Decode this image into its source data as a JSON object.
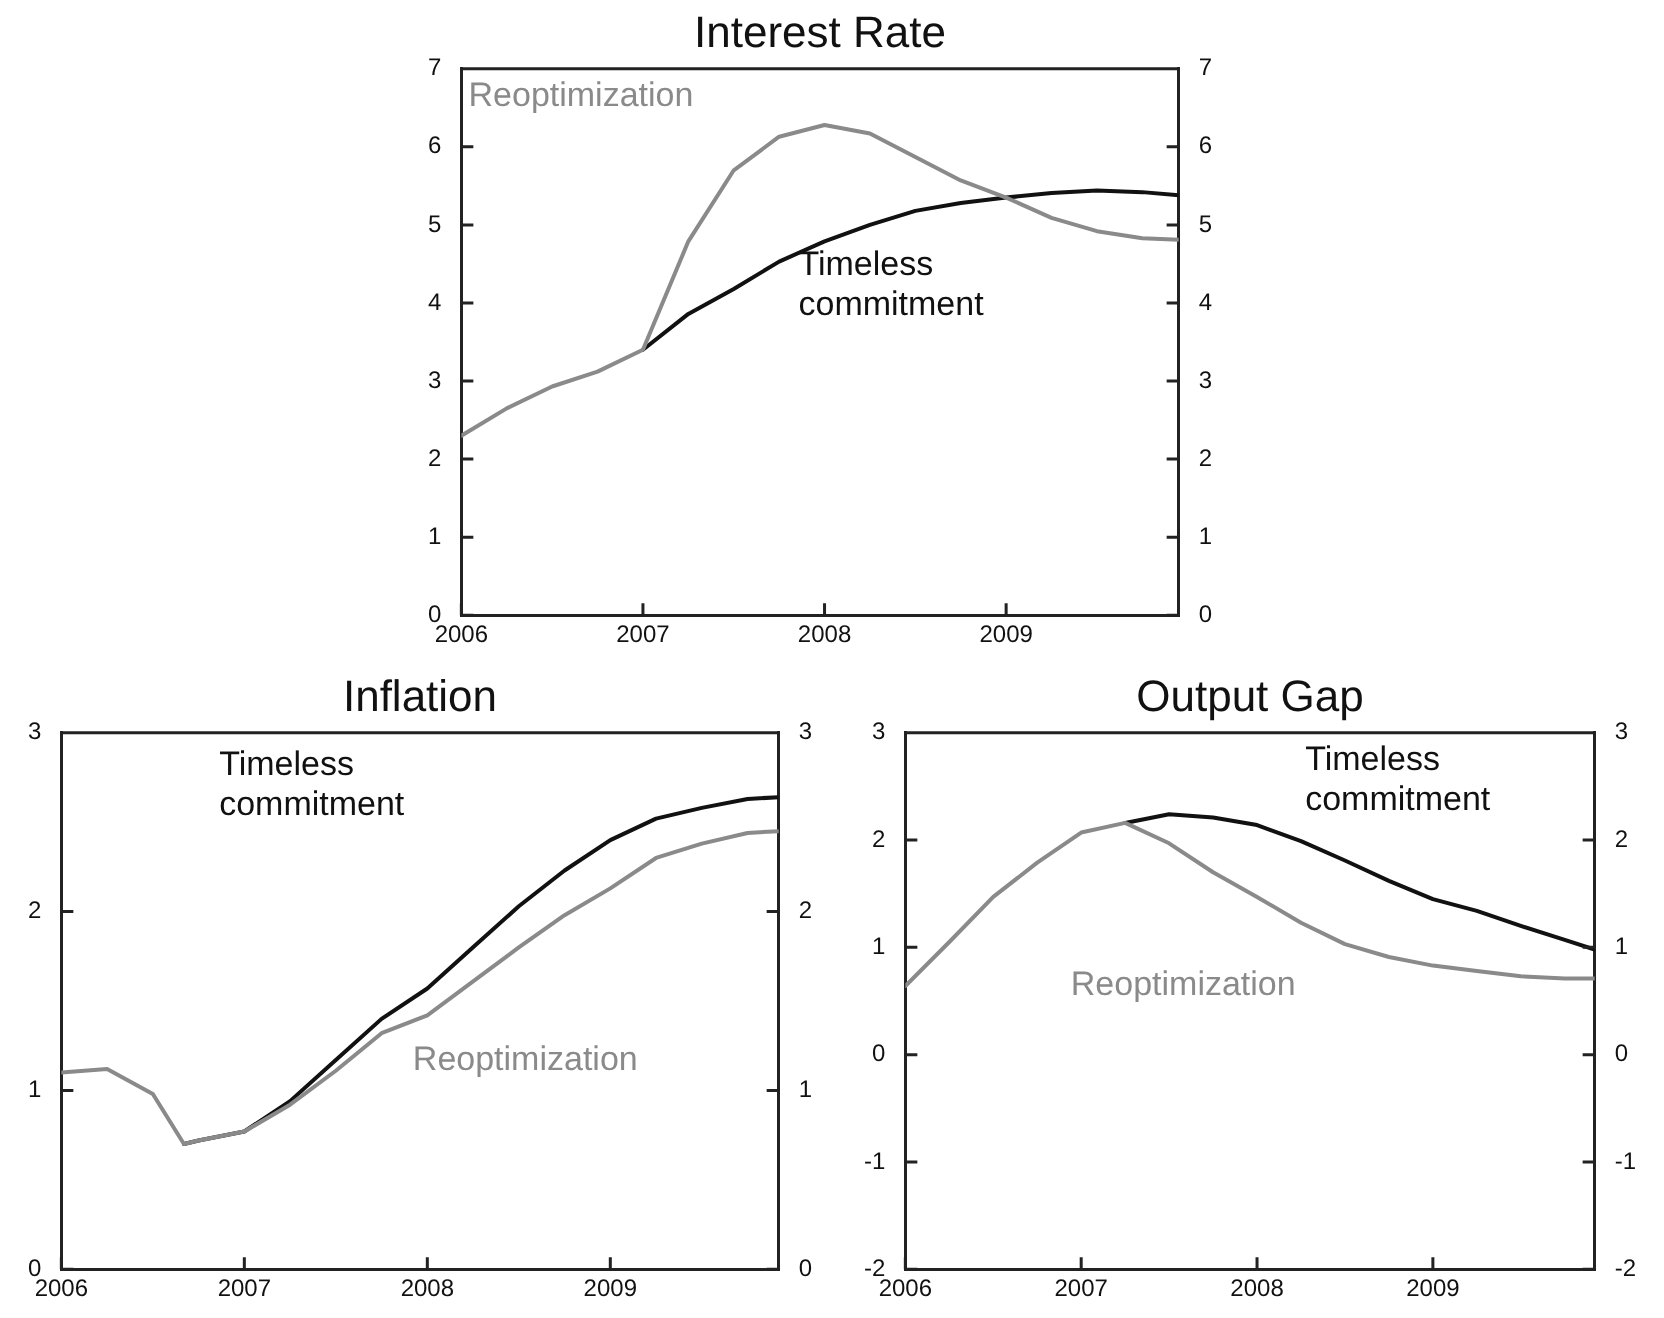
{
  "chart_data": [
    {
      "type": "line",
      "title": "Interest Rate",
      "x": [
        2006,
        2006.25,
        2006.5,
        2006.75,
        2007,
        2007.25,
        2007.5,
        2007.75,
        2008,
        2008.25,
        2008.5,
        2008.75,
        2009,
        2009.25,
        2009.5,
        2009.75,
        2009.95
      ],
      "xlim": [
        2006,
        2009.95
      ],
      "xticks": [
        2006,
        2007,
        2008,
        2009
      ],
      "ylim": [
        0,
        7
      ],
      "yticks": [
        0,
        1,
        2,
        3,
        4,
        5,
        6,
        7
      ],
      "y2lim": [
        0,
        7
      ],
      "y2ticks": [
        0,
        1,
        2,
        3,
        4,
        5,
        6,
        7
      ],
      "grid": false,
      "legend": false,
      "series": [
        {
          "name": "Reoptimization",
          "color": "#8a8a8a",
          "values": [
            2.3,
            2.65,
            2.93,
            3.12,
            3.4,
            4.79,
            5.7,
            6.13,
            6.28,
            6.17,
            5.87,
            5.57,
            5.35,
            5.09,
            4.92,
            4.83,
            4.81
          ]
        },
        {
          "name": "Timeless commitment",
          "color": "#111111",
          "values": [
            null,
            null,
            null,
            null,
            3.4,
            3.86,
            4.18,
            4.53,
            4.79,
            5.0,
            5.18,
            5.28,
            5.35,
            5.41,
            5.44,
            5.42,
            5.38
          ]
        }
      ]
    },
    {
      "type": "line",
      "title": "Inflation",
      "x": [
        2006,
        2006.25,
        2006.5,
        2006.67,
        2006.75,
        2007,
        2007.25,
        2007.5,
        2007.75,
        2008,
        2008.25,
        2008.5,
        2008.75,
        2009,
        2009.25,
        2009.5,
        2009.75,
        2009.92
      ],
      "xlim": [
        2006,
        2009.92
      ],
      "xticks": [
        2006,
        2007,
        2008,
        2009
      ],
      "ylim": [
        0,
        3
      ],
      "yticks": [
        0,
        1,
        2,
        3
      ],
      "y2lim": [
        0,
        3
      ],
      "y2ticks": [
        0,
        1,
        2,
        3
      ],
      "grid": false,
      "legend": false,
      "series": [
        {
          "name": "Reoptimization",
          "color": "#8a8a8a",
          "values": [
            1.1,
            1.12,
            0.98,
            0.7,
            0.72,
            0.77,
            0.92,
            1.11,
            1.32,
            1.42,
            1.61,
            1.8,
            1.98,
            2.13,
            2.3,
            2.38,
            2.44,
            2.45
          ]
        },
        {
          "name": "Timeless commitment",
          "color": "#111111",
          "values": [
            null,
            null,
            null,
            0.7,
            0.72,
            0.77,
            0.94,
            1.17,
            1.4,
            1.57,
            1.8,
            2.03,
            2.23,
            2.4,
            2.52,
            2.58,
            2.63,
            2.64
          ]
        }
      ]
    },
    {
      "type": "line",
      "title": "Output Gap",
      "x": [
        2006,
        2006.25,
        2006.5,
        2006.75,
        2007,
        2007.25,
        2007.5,
        2007.75,
        2008,
        2008.25,
        2008.5,
        2008.75,
        2009,
        2009.25,
        2009.5,
        2009.75,
        2009.92
      ],
      "xlim": [
        2006,
        2009.92
      ],
      "xticks": [
        2006,
        2007,
        2008,
        2009
      ],
      "ylim": [
        -2,
        3
      ],
      "yticks": [
        -2,
        -1,
        0,
        1,
        2,
        3
      ],
      "y2lim": [
        -2,
        3
      ],
      "y2ticks": [
        -2,
        -1,
        0,
        1,
        2,
        3
      ],
      "grid": false,
      "legend": false,
      "series": [
        {
          "name": "Reoptimization",
          "color": "#8a8a8a",
          "values": [
            0.64,
            1.05,
            1.47,
            1.79,
            2.07,
            2.16,
            1.97,
            1.7,
            1.47,
            1.23,
            1.03,
            0.91,
            0.83,
            0.78,
            0.73,
            0.71,
            0.71
          ]
        },
        {
          "name": "Timeless commitment",
          "color": "#111111",
          "values": [
            null,
            null,
            null,
            null,
            null,
            2.16,
            2.24,
            2.21,
            2.14,
            1.99,
            1.81,
            1.62,
            1.45,
            1.34,
            1.2,
            1.07,
            0.98
          ]
        }
      ]
    }
  ]
}
